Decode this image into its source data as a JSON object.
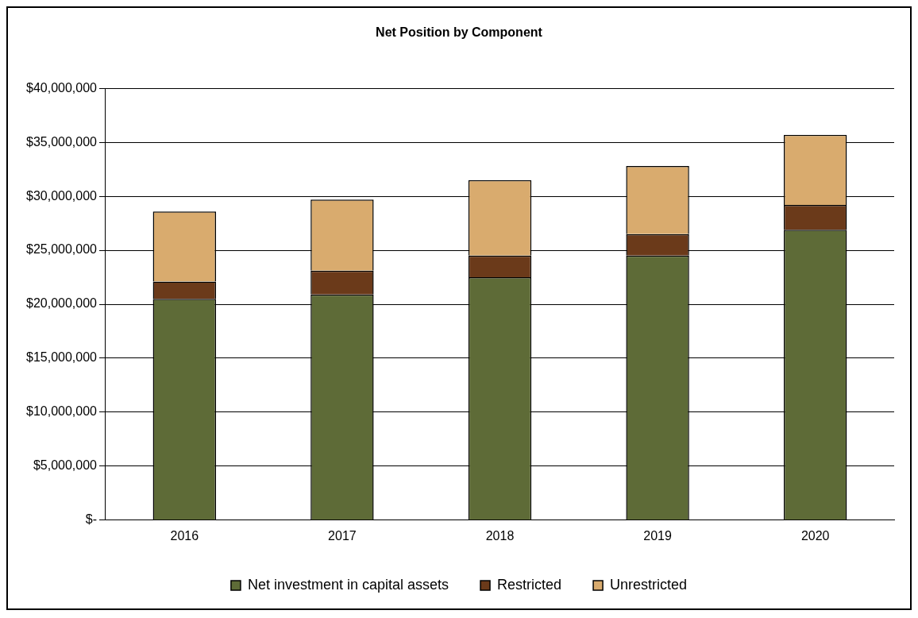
{
  "chart_data": {
    "type": "bar",
    "title": "Net Position by Component",
    "categories": [
      "2016",
      "2017",
      "2018",
      "2019",
      "2020"
    ],
    "stacked": true,
    "series": [
      {
        "name": "Net investment in capital assets",
        "color": "#5e6b37",
        "values": [
          20500000,
          20900000,
          22500000,
          24500000,
          26900000
        ]
      },
      {
        "name": "Restricted",
        "color": "#6b3a1a",
        "values": [
          1600000,
          2200000,
          2000000,
          2000000,
          2300000
        ]
      },
      {
        "name": "Unrestricted",
        "color": "#d9ab6e",
        "values": [
          6500000,
          6600000,
          7000000,
          6300000,
          6500000
        ]
      }
    ],
    "ylim": [
      0,
      40000000
    ],
    "yticks": [
      {
        "value": 0,
        "label": "$-"
      },
      {
        "value": 5000000,
        "label": "$5,000,000"
      },
      {
        "value": 10000000,
        "label": "$10,000,000"
      },
      {
        "value": 15000000,
        "label": "$15,000,000"
      },
      {
        "value": 20000000,
        "label": "$20,000,000"
      },
      {
        "value": 25000000,
        "label": "$25,000,000"
      },
      {
        "value": 30000000,
        "label": "$30,000,000"
      },
      {
        "value": 35000000,
        "label": "$35,000,000"
      },
      {
        "value": 40000000,
        "label": "$40,000,000"
      }
    ],
    "grid": "y",
    "legend": "bottom"
  }
}
